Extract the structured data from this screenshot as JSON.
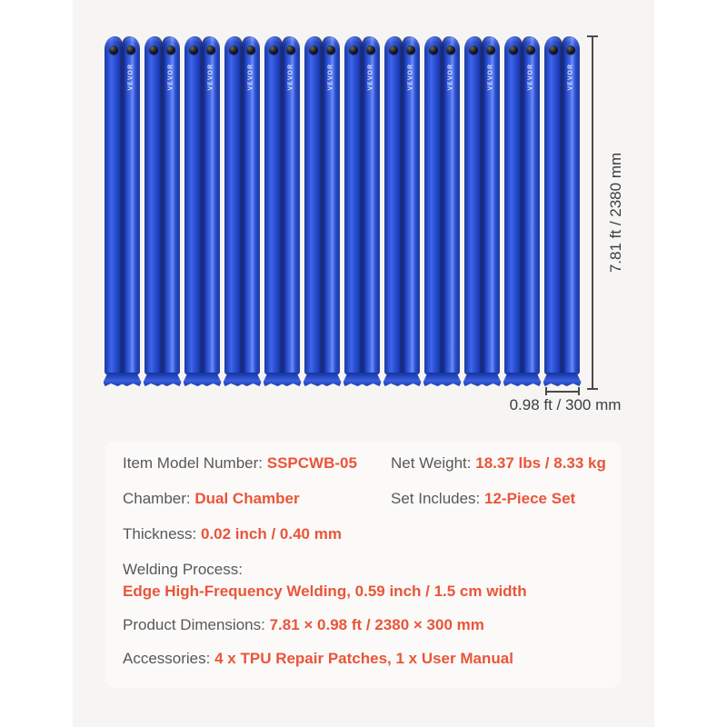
{
  "brand": "VEVOR",
  "product_image": {
    "tube_count": 12,
    "height_dimension": "7.81 ft / 2380 mm",
    "width_dimension": "0.98 ft / 300 mm",
    "colors": {
      "tube_blue": "#2b50cd",
      "tube_blue_dark": "#122a85",
      "tube_highlight": "#6e8cf0",
      "valve_black": "#0b0b0f",
      "stage_background": "#f6f5f3"
    }
  },
  "spec_panel": {
    "accent_color": "#ea5538",
    "label_color": "#57585a",
    "items": [
      {
        "label": "Item Model Number:",
        "value": "SSPCWB-05"
      },
      {
        "label": "Net Weight:",
        "value": "18.37 lbs / 8.33 kg"
      },
      {
        "label": "Chamber:",
        "value": "Dual Chamber"
      },
      {
        "label": "Set Includes:",
        "value": "12-Piece Set"
      },
      {
        "label": "Thickness:",
        "value": "0.02 inch / 0.40 mm"
      },
      {
        "label": "Welding Process:",
        "value": "Edge High-Frequency Welding, 0.59 inch / 1.5 cm width"
      },
      {
        "label": "Product Dimensions:",
        "value": "7.81 × 0.98 ft / 2380 × 300 mm"
      },
      {
        "label": "Accessories:",
        "value": "4 x TPU Repair Patches, 1 x User Manual"
      }
    ]
  }
}
